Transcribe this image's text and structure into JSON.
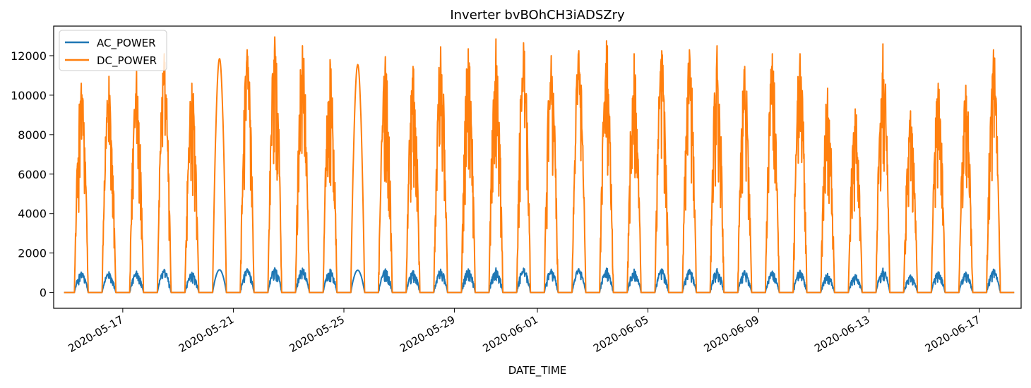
{
  "chart_data": {
    "type": "line",
    "title": "Inverter bvBOhCH3iADSZry",
    "xlabel": "DATE_TIME",
    "ylabel": "",
    "x_range": [
      "2020-05-14T12:00",
      "2020-06-18T12:00"
    ],
    "ylim": [
      -800,
      13500
    ],
    "yticks": [
      0,
      2000,
      4000,
      6000,
      8000,
      10000,
      12000
    ],
    "xticks": [
      "2020-05-17",
      "2020-05-21",
      "2020-05-25",
      "2020-05-29",
      "2020-06-01",
      "2020-06-05",
      "2020-06-09",
      "2020-06-13",
      "2020-06-17"
    ],
    "grid": false,
    "legend_position": "upper-left",
    "series": [
      {
        "name": "AC_POWER",
        "color": "#1f77b4",
        "daily_peak": [
          {
            "date": "2020-05-15",
            "peak": 1030
          },
          {
            "date": "2020-05-16",
            "peak": 1050
          },
          {
            "date": "2020-05-17",
            "peak": 1080
          },
          {
            "date": "2020-05-18",
            "peak": 1170
          },
          {
            "date": "2020-05-19",
            "peak": 1020
          },
          {
            "date": "2020-05-20",
            "peak": 1150
          },
          {
            "date": "2020-05-21",
            "peak": 1200
          },
          {
            "date": "2020-05-22",
            "peak": 1250
          },
          {
            "date": "2020-05-23",
            "peak": 1230
          },
          {
            "date": "2020-05-24",
            "peak": 1180
          },
          {
            "date": "2020-05-25",
            "peak": 1130
          },
          {
            "date": "2020-05-26",
            "peak": 1190
          },
          {
            "date": "2020-05-27",
            "peak": 1100
          },
          {
            "date": "2020-05-28",
            "peak": 1180
          },
          {
            "date": "2020-05-29",
            "peak": 1190
          },
          {
            "date": "2020-05-30",
            "peak": 1240
          },
          {
            "date": "2020-05-31",
            "peak": 1230
          },
          {
            "date": "2020-06-01",
            "peak": 1180
          },
          {
            "date": "2020-06-02",
            "peak": 1200
          },
          {
            "date": "2020-06-03",
            "peak": 1230
          },
          {
            "date": "2020-06-04",
            "peak": 1180
          },
          {
            "date": "2020-06-05",
            "peak": 1190
          },
          {
            "date": "2020-06-06",
            "peak": 1170
          },
          {
            "date": "2020-06-07",
            "peak": 1210
          },
          {
            "date": "2020-06-08",
            "peak": 1100
          },
          {
            "date": "2020-06-09",
            "peak": 1080
          },
          {
            "date": "2020-06-10",
            "peak": 1120
          },
          {
            "date": "2020-06-11",
            "peak": 960
          },
          {
            "date": "2020-06-12",
            "peak": 900
          },
          {
            "date": "2020-06-13",
            "peak": 1230
          },
          {
            "date": "2020-06-14",
            "peak": 880
          },
          {
            "date": "2020-06-15",
            "peak": 1050
          },
          {
            "date": "2020-06-16",
            "peak": 1030
          },
          {
            "date": "2020-06-17",
            "peak": 1180
          }
        ]
      },
      {
        "name": "DC_POWER",
        "color": "#ff7f0e",
        "daily_peak": [
          {
            "date": "2020-05-15",
            "peak": 10600
          },
          {
            "date": "2020-05-16",
            "peak": 10950
          },
          {
            "date": "2020-05-17",
            "peak": 11200
          },
          {
            "date": "2020-05-18",
            "peak": 12100
          },
          {
            "date": "2020-05-19",
            "peak": 10600
          },
          {
            "date": "2020-05-20",
            "peak": 11850
          },
          {
            "date": "2020-05-21",
            "peak": 12300
          },
          {
            "date": "2020-05-22",
            "peak": 12950
          },
          {
            "date": "2020-05-23",
            "peak": 12500
          },
          {
            "date": "2020-05-24",
            "peak": 11800
          },
          {
            "date": "2020-05-25",
            "peak": 11550
          },
          {
            "date": "2020-05-26",
            "peak": 11950
          },
          {
            "date": "2020-05-27",
            "peak": 11450
          },
          {
            "date": "2020-05-28",
            "peak": 12450
          },
          {
            "date": "2020-05-29",
            "peak": 12350
          },
          {
            "date": "2020-05-30",
            "peak": 12850
          },
          {
            "date": "2020-05-31",
            "peak": 12650
          },
          {
            "date": "2020-06-01",
            "peak": 12000
          },
          {
            "date": "2020-06-02",
            "peak": 12250
          },
          {
            "date": "2020-06-03",
            "peak": 12750
          },
          {
            "date": "2020-06-04",
            "peak": 12100
          },
          {
            "date": "2020-06-05",
            "peak": 12250
          },
          {
            "date": "2020-06-06",
            "peak": 12300
          },
          {
            "date": "2020-06-07",
            "peak": 12500
          },
          {
            "date": "2020-06-08",
            "peak": 11450
          },
          {
            "date": "2020-06-09",
            "peak": 12100
          },
          {
            "date": "2020-06-10",
            "peak": 12100
          },
          {
            "date": "2020-06-11",
            "peak": 10350
          },
          {
            "date": "2020-06-12",
            "peak": 9300
          },
          {
            "date": "2020-06-13",
            "peak": 12600
          },
          {
            "date": "2020-06-14",
            "peak": 9200
          },
          {
            "date": "2020-06-15",
            "peak": 10600
          },
          {
            "date": "2020-06-16",
            "peak": 10500
          },
          {
            "date": "2020-06-17",
            "peak": 12300
          }
        ]
      }
    ]
  }
}
